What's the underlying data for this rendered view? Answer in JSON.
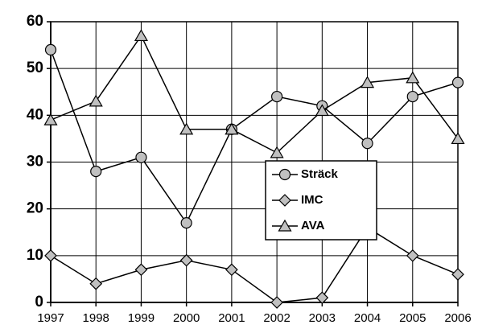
{
  "chart_data": {
    "type": "line",
    "categories": [
      "1997",
      "1998",
      "1999",
      "2000",
      "2001",
      "2002",
      "2003",
      "2004",
      "2005",
      "2006"
    ],
    "series": [
      {
        "name": "Sträck",
        "color": "#000000",
        "marker": "circle",
        "marker_color": "#c0c0c0",
        "values": [
          54,
          28,
          31,
          17,
          37,
          44,
          42,
          34,
          44,
          47
        ]
      },
      {
        "name": "IMC",
        "color": "#000000",
        "marker": "diamond",
        "marker_color": "#c0c0c0",
        "values": [
          10,
          4,
          7,
          9,
          7,
          0,
          1,
          16,
          10,
          6
        ]
      },
      {
        "name": "AVA",
        "color": "#000000",
        "marker": "triangle",
        "marker_color": "#c0c0c0",
        "values": [
          39,
          43,
          57,
          37,
          37,
          32,
          41,
          47,
          48,
          35
        ]
      }
    ],
    "ylim": [
      0,
      60
    ],
    "yticks": [
      0,
      10,
      20,
      30,
      40,
      50,
      60
    ],
    "grid": true,
    "legend": "center-right"
  }
}
